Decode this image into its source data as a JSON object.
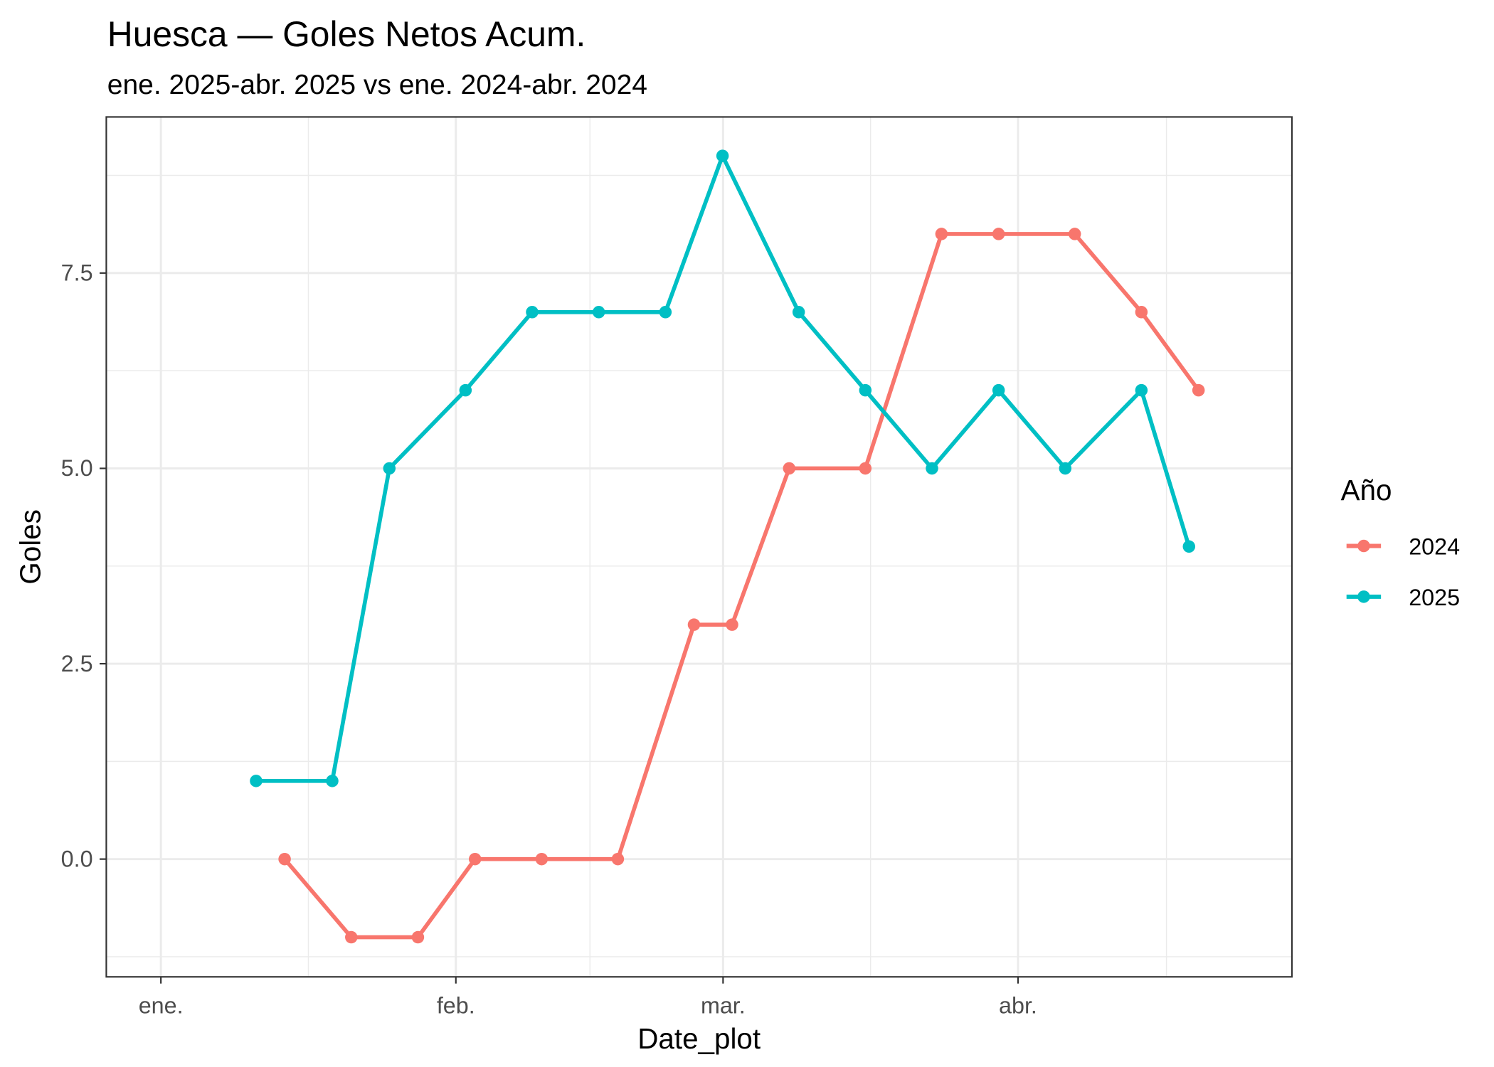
{
  "chart_data": {
    "type": "line",
    "title": "Huesca — Goles Netos Acum.",
    "subtitle": "ene. 2025-abr. 2025 vs ene. 2024-abr. 2024",
    "xlabel": "Date_plot",
    "ylabel": "Goles",
    "x_tick_labels": [
      "ene.",
      "feb.",
      "mar.",
      "abr."
    ],
    "y_tick_labels": [
      "0.0",
      "2.5",
      "5.0",
      "7.5"
    ],
    "ylim": [
      -1.5,
      9.5
    ],
    "grid": true,
    "legend": {
      "title": "Año",
      "position": "right",
      "entries": [
        "2024",
        "2025"
      ]
    },
    "series": [
      {
        "name": "2024",
        "color": "#F8766D",
        "dates": [
          "01-14",
          "01-21",
          "01-28",
          "02-03",
          "02-10",
          "02-18",
          "02-26",
          "03-02",
          "03-08",
          "03-16",
          "03-24",
          "03-30",
          "04-07",
          "04-14",
          "04-20"
        ],
        "day_offset": [
          13,
          20,
          27,
          33,
          40,
          48,
          56,
          60,
          66,
          74,
          82,
          88,
          96,
          103,
          109
        ],
        "values": [
          0,
          -1,
          -1,
          0,
          0,
          0,
          3,
          3,
          5,
          5,
          8,
          8,
          8,
          7,
          6
        ]
      },
      {
        "name": "2025",
        "color": "#00BFC4",
        "dates": [
          "01-11",
          "01-19",
          "01-25",
          "02-02",
          "02-09",
          "02-16",
          "02-23",
          "03-01",
          "03-09",
          "03-16",
          "03-23",
          "03-30",
          "04-06",
          "04-14",
          "04-19"
        ],
        "day_offset": [
          10,
          18,
          24,
          32,
          39,
          46,
          53,
          59,
          67,
          74,
          81,
          88,
          95,
          103,
          108
        ],
        "values": [
          1,
          1,
          5,
          6,
          7,
          7,
          7,
          9,
          7,
          6,
          5,
          6,
          5,
          6,
          4
        ]
      }
    ]
  }
}
